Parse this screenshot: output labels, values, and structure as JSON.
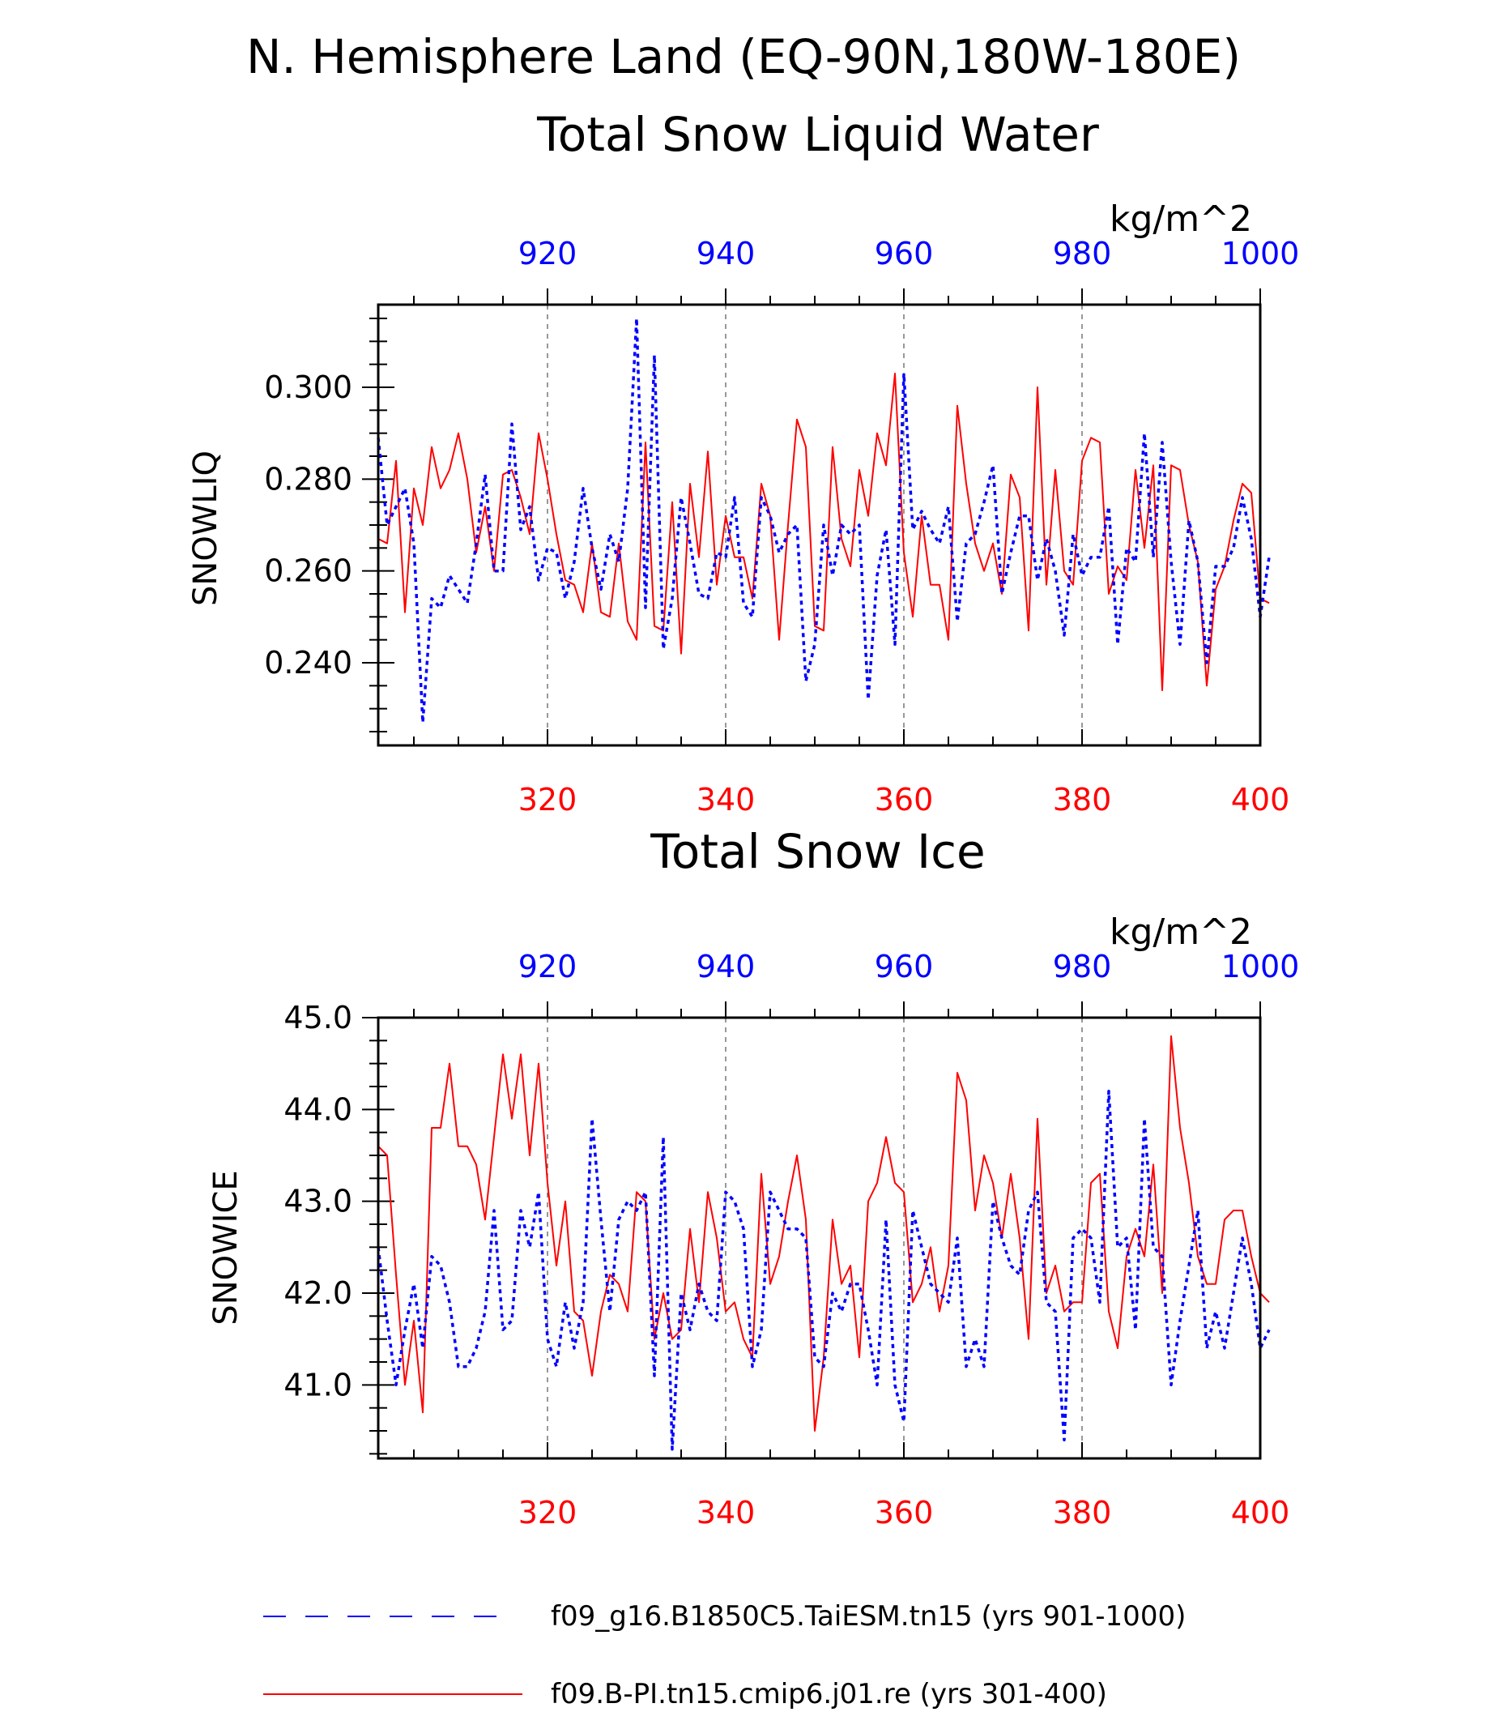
{
  "figure": {
    "title_line1": "N. Hemisphere Land (EQ-90N,180W-180E)"
  },
  "legend": [
    {
      "label": "f09_g16.B1850C5.TaiESM.tn15 (yrs 901-1000)",
      "color": "#0000ff",
      "style": "dashed"
    },
    {
      "label": "f09.B-PI.tn15.cmip6.j01.re (yrs 301-400)",
      "color": "#ff0000",
      "style": "solid"
    }
  ],
  "chart_data": [
    {
      "type": "line",
      "title": "Total Snow Liquid Water",
      "ylabel": "SNOWLIQ",
      "units": "kg/m^2",
      "ylim": [
        0.222,
        0.318
      ],
      "yticks": [
        "0.240",
        "0.260",
        "0.280",
        "0.300"
      ],
      "ytick_values": [
        0.24,
        0.26,
        0.28,
        0.3
      ],
      "bottom_axis": {
        "range": [
          301,
          400
        ],
        "ticks": [
          "320",
          "340",
          "360",
          "380",
          "400"
        ],
        "color": "#ff0000"
      },
      "top_axis": {
        "range": [
          901,
          1000
        ],
        "ticks": [
          "920",
          "940",
          "960",
          "980",
          "1000"
        ],
        "color": "#0000ff"
      },
      "gridlines_x": [
        320,
        340,
        360,
        380
      ],
      "series": [
        {
          "name": "f09.B-PI.tn15.cmip6.j01.re (yrs 301-400)",
          "color": "#ff0000",
          "style": "solid",
          "x_start": 301,
          "values": [
            0.267,
            0.266,
            0.284,
            0.251,
            0.278,
            0.27,
            0.287,
            0.278,
            0.282,
            0.29,
            0.28,
            0.264,
            0.274,
            0.26,
            0.281,
            0.282,
            0.276,
            0.268,
            0.29,
            0.28,
            0.268,
            0.258,
            0.257,
            0.251,
            0.266,
            0.251,
            0.25,
            0.266,
            0.249,
            0.245,
            0.288,
            0.248,
            0.247,
            0.275,
            0.242,
            0.279,
            0.263,
            0.286,
            0.257,
            0.272,
            0.263,
            0.263,
            0.254,
            0.279,
            0.272,
            0.245,
            0.27,
            0.293,
            0.287,
            0.248,
            0.247,
            0.287,
            0.267,
            0.261,
            0.282,
            0.272,
            0.29,
            0.283,
            0.303,
            0.264,
            0.25,
            0.272,
            0.257,
            0.257,
            0.245,
            0.296,
            0.279,
            0.266,
            0.26,
            0.266,
            0.255,
            0.281,
            0.276,
            0.247,
            0.3,
            0.257,
            0.282,
            0.26,
            0.257,
            0.284,
            0.289,
            0.288,
            0.255,
            0.261,
            0.258,
            0.282,
            0.265,
            0.283,
            0.234,
            0.283,
            0.282,
            0.27,
            0.262,
            0.235,
            0.256,
            0.261,
            0.271,
            0.279,
            0.277,
            0.254,
            0.253
          ]
        },
        {
          "name": "f09_g16.B1850C5.TaiESM.tn15 (yrs 901-1000)",
          "color": "#0000ff",
          "style": "dashed",
          "x_start": 901,
          "values": [
            0.289,
            0.27,
            0.274,
            0.278,
            0.266,
            0.227,
            0.254,
            0.252,
            0.259,
            0.256,
            0.253,
            0.266,
            0.281,
            0.26,
            0.26,
            0.292,
            0.269,
            0.274,
            0.258,
            0.265,
            0.264,
            0.254,
            0.262,
            0.278,
            0.265,
            0.256,
            0.268,
            0.262,
            0.278,
            0.315,
            0.252,
            0.307,
            0.243,
            0.254,
            0.276,
            0.266,
            0.255,
            0.254,
            0.264,
            0.263,
            0.276,
            0.253,
            0.25,
            0.276,
            0.272,
            0.264,
            0.268,
            0.27,
            0.236,
            0.244,
            0.27,
            0.259,
            0.27,
            0.268,
            0.27,
            0.232,
            0.259,
            0.269,
            0.244,
            0.303,
            0.269,
            0.273,
            0.269,
            0.266,
            0.274,
            0.249,
            0.266,
            0.268,
            0.275,
            0.283,
            0.255,
            0.264,
            0.272,
            0.272,
            0.258,
            0.267,
            0.26,
            0.246,
            0.268,
            0.259,
            0.263,
            0.263,
            0.274,
            0.244,
            0.265,
            0.262,
            0.29,
            0.263,
            0.288,
            0.262,
            0.244,
            0.271,
            0.262,
            0.24,
            0.261,
            0.261,
            0.265,
            0.276,
            0.267,
            0.25,
            0.263
          ]
        }
      ]
    },
    {
      "type": "line",
      "title": "Total Snow Ice",
      "ylabel": "SNOWICE",
      "units": "kg/m^2",
      "ylim": [
        40.2,
        45.0
      ],
      "yticks": [
        "41.0",
        "42.0",
        "43.0",
        "44.0",
        "45.0"
      ],
      "ytick_values": [
        41.0,
        42.0,
        43.0,
        44.0,
        45.0
      ],
      "bottom_axis": {
        "range": [
          301,
          400
        ],
        "ticks": [
          "320",
          "340",
          "360",
          "380",
          "400"
        ],
        "color": "#ff0000"
      },
      "top_axis": {
        "range": [
          901,
          1000
        ],
        "ticks": [
          "920",
          "940",
          "960",
          "980",
          "1000"
        ],
        "color": "#0000ff"
      },
      "gridlines_x": [
        320,
        340,
        360,
        380
      ],
      "series": [
        {
          "name": "f09.B-PI.tn15.cmip6.j01.re (yrs 301-400)",
          "color": "#ff0000",
          "style": "solid",
          "x_start": 301,
          "values": [
            43.6,
            43.5,
            42.2,
            41.0,
            41.7,
            40.7,
            43.8,
            43.8,
            44.5,
            43.6,
            43.6,
            43.4,
            42.8,
            43.7,
            44.6,
            43.9,
            44.6,
            43.5,
            44.5,
            43.2,
            42.3,
            43.0,
            41.8,
            41.7,
            41.1,
            41.8,
            42.2,
            42.1,
            41.8,
            43.1,
            43.0,
            41.5,
            42.0,
            41.5,
            41.6,
            42.7,
            41.9,
            43.1,
            42.6,
            41.8,
            41.9,
            41.5,
            41.3,
            43.3,
            42.1,
            42.4,
            43.0,
            43.5,
            42.8,
            40.5,
            41.3,
            42.8,
            42.1,
            42.3,
            41.3,
            43.0,
            43.2,
            43.7,
            43.2,
            43.1,
            41.9,
            42.1,
            42.5,
            41.8,
            42.3,
            44.4,
            44.1,
            42.9,
            43.5,
            43.2,
            42.6,
            43.3,
            42.6,
            41.5,
            43.9,
            42.0,
            42.3,
            41.8,
            41.9,
            41.9,
            43.2,
            43.3,
            41.8,
            41.4,
            42.4,
            42.7,
            42.4,
            43.4,
            42.0,
            44.8,
            43.8,
            43.2,
            42.4,
            42.1,
            42.1,
            42.8,
            42.9,
            42.9,
            42.4,
            42.0,
            41.9
          ]
        },
        {
          "name": "f09_g16.B1850C5.TaiESM.tn15 (yrs 901-1000)",
          "color": "#0000ff",
          "style": "dashed",
          "x_start": 901,
          "values": [
            42.5,
            41.7,
            41.0,
            41.6,
            42.1,
            41.4,
            42.4,
            42.3,
            41.9,
            41.2,
            41.2,
            41.4,
            41.8,
            42.9,
            41.6,
            41.7,
            42.9,
            42.5,
            43.1,
            41.5,
            41.2,
            41.9,
            41.4,
            41.9,
            43.9,
            42.8,
            41.8,
            42.8,
            43.0,
            42.9,
            43.1,
            41.1,
            43.7,
            40.3,
            42.0,
            41.6,
            42.1,
            41.8,
            41.7,
            43.1,
            43.0,
            42.7,
            41.2,
            41.6,
            43.1,
            42.9,
            42.7,
            42.7,
            42.6,
            41.3,
            41.2,
            42.0,
            41.8,
            42.1,
            42.1,
            41.6,
            41.0,
            42.8,
            41.0,
            40.6,
            42.9,
            42.5,
            42.1,
            42.0,
            41.9,
            42.6,
            41.2,
            41.5,
            41.2,
            43.0,
            42.6,
            42.3,
            42.2,
            42.9,
            43.1,
            41.9,
            41.8,
            40.4,
            42.6,
            42.7,
            42.6,
            41.9,
            44.2,
            42.5,
            42.6,
            41.6,
            43.9,
            42.5,
            42.4,
            41.0,
            41.7,
            42.3,
            42.9,
            41.4,
            41.8,
            41.4,
            42.0,
            42.6,
            42.1,
            41.4,
            41.6
          ]
        }
      ]
    }
  ]
}
